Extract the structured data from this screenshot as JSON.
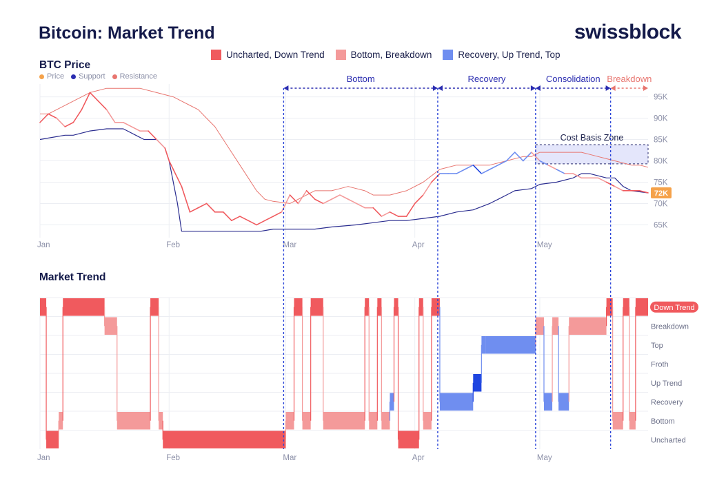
{
  "header": {
    "title": "Bitcoin: Market Trend",
    "brand": "swissblock"
  },
  "legend": [
    {
      "label": "Uncharted, Down Trend",
      "color": "#f05a5e"
    },
    {
      "label": "Bottom, Breakdown",
      "color": "#f49a9a"
    },
    {
      "label": "Recovery, Up Trend, Top",
      "color": "#6f8ef0"
    }
  ],
  "colors": {
    "support": "#2a2c8f",
    "resistance": "#e8756f",
    "down": "#f05a5e",
    "breakdown": "#f49a9a",
    "up": "#6f8ef0",
    "up_strong": "#1f45e0",
    "price_label": "#f5a24a"
  },
  "chart_data": [
    {
      "type": "line",
      "title": "BTC Price",
      "series_legend": [
        {
          "label": "Price",
          "color": "#f5a24a"
        },
        {
          "label": "Support",
          "color": "#2a2cb0"
        },
        {
          "label": "Resistance",
          "color": "#e8756f"
        }
      ],
      "x_axis": {
        "ticks": [
          "Jan",
          "Feb",
          "Mar",
          "Apr",
          "May"
        ],
        "tick_days": [
          0,
          31,
          59,
          90,
          120
        ]
      },
      "y_axis": {
        "ticks": [
          "95K",
          "90K",
          "85K",
          "80K",
          "75K",
          "70K",
          "65K"
        ],
        "tick_values": [
          95,
          90,
          85,
          80,
          75,
          70,
          65
        ],
        "range": [
          62,
          98
        ],
        "unit": "K"
      },
      "current_price_label": "72K",
      "series": [
        {
          "name": "Price",
          "x": [
            0,
            2,
            4,
            6,
            8,
            10,
            12,
            13,
            14,
            16,
            18,
            20,
            22,
            24,
            26,
            28,
            30,
            31,
            32,
            34,
            36,
            38,
            40,
            42,
            44,
            46,
            48,
            50,
            52,
            54,
            56,
            58,
            60,
            62,
            64,
            66,
            68,
            70,
            72,
            74,
            76,
            78,
            80,
            82,
            84,
            86,
            88,
            90,
            92,
            94,
            96,
            98,
            100,
            102,
            104,
            106,
            108,
            110,
            112,
            114,
            116,
            118,
            120,
            122,
            124,
            126,
            128,
            130,
            132,
            134,
            136,
            138,
            140,
            142,
            144,
            146
          ],
          "y": [
            89,
            91,
            90,
            88,
            89,
            92,
            96,
            95,
            94,
            92,
            89,
            89,
            88,
            87,
            87,
            85,
            83,
            80,
            78,
            74,
            68,
            69,
            70,
            68,
            68,
            66,
            67,
            66,
            65,
            66,
            67,
            68,
            72,
            70,
            73,
            71,
            70,
            71,
            72,
            71,
            70,
            69,
            69,
            67,
            68,
            67,
            67,
            70,
            72,
            75,
            77,
            77,
            77,
            78,
            79,
            77,
            78,
            79,
            80,
            82,
            80,
            82,
            80,
            79,
            78,
            77,
            77,
            76,
            76,
            76,
            75,
            74,
            73,
            73,
            73,
            72.5
          ]
        },
        {
          "name": "Support",
          "x": [
            0,
            3,
            6,
            8,
            10,
            12,
            16,
            20,
            23,
            25,
            28,
            30,
            31,
            33,
            34,
            36,
            53,
            56,
            60,
            66,
            70,
            76,
            80,
            84,
            88,
            92,
            96,
            100,
            104,
            108,
            110,
            112,
            114,
            118,
            120,
            124,
            128,
            130,
            132,
            134,
            136,
            138,
            140,
            142,
            146
          ],
          "y": [
            85,
            85.5,
            86,
            86,
            86.5,
            87,
            87.5,
            87.5,
            86,
            85,
            85,
            83,
            80,
            70,
            63.5,
            63.5,
            63.5,
            64,
            64,
            64,
            64.5,
            65,
            65.5,
            66,
            66,
            66.5,
            67,
            68,
            68.5,
            70,
            71,
            72,
            73,
            73.5,
            74.5,
            75,
            76,
            77,
            77,
            76.5,
            76,
            76,
            74,
            73,
            72.5
          ]
        },
        {
          "name": "Resistance",
          "x": [
            0,
            2,
            4,
            8,
            12,
            16,
            20,
            24,
            28,
            30,
            32,
            34,
            36,
            38,
            40,
            42,
            44,
            46,
            48,
            50,
            52,
            54,
            56,
            60,
            62,
            64,
            66,
            68,
            70,
            72,
            74,
            76,
            78,
            80,
            84,
            88,
            92,
            96,
            100,
            104,
            108,
            112,
            116,
            118,
            120,
            124,
            126,
            128,
            130,
            132,
            134,
            136,
            138,
            140,
            142,
            144,
            146
          ],
          "y": [
            91,
            91,
            92,
            94,
            96,
            97,
            97,
            97,
            96,
            95.5,
            95,
            94,
            93,
            92,
            90,
            88,
            85,
            82,
            79,
            76,
            73,
            71,
            70.5,
            70,
            71,
            72,
            73,
            73,
            73,
            73.5,
            74,
            73.5,
            73,
            72,
            72,
            73,
            75,
            78,
            79,
            79,
            79,
            80,
            81,
            81,
            82,
            82,
            82,
            82,
            82,
            81.5,
            81,
            80.5,
            80,
            79.5,
            79,
            79,
            78.5
          ]
        }
      ]
    },
    {
      "type": "heatmap",
      "title": "Market Trend",
      "y_axis": {
        "levels": [
          "Down Trend",
          "Breakdown",
          "Top",
          "Froth",
          "Up Trend",
          "Recovery",
          "Bottom",
          "Uncharted"
        ]
      },
      "x_axis": {
        "ticks": [
          "Jan",
          "Feb",
          "Mar",
          "Apr",
          "May"
        ],
        "tick_days": [
          0,
          31,
          59,
          90,
          120
        ]
      },
      "highlighted_level": "Down Trend",
      "segments": [
        {
          "start": 0,
          "end": 1.5,
          "level": "Down Trend",
          "color": "down"
        },
        {
          "start": 1.5,
          "end": 4.5,
          "level": "Uncharted",
          "color": "down"
        },
        {
          "start": 4.5,
          "end": 5.5,
          "level": "Bottom",
          "color": "breakdown"
        },
        {
          "start": 5.5,
          "end": 15.5,
          "level": "Down Trend",
          "color": "down"
        },
        {
          "start": 15.5,
          "end": 18.5,
          "level": "Breakdown",
          "color": "breakdown"
        },
        {
          "start": 18.5,
          "end": 26.5,
          "level": "Bottom",
          "color": "breakdown"
        },
        {
          "start": 26.5,
          "end": 28.5,
          "level": "Down Trend",
          "color": "down"
        },
        {
          "start": 28.5,
          "end": 29.5,
          "level": "Bottom",
          "color": "breakdown"
        },
        {
          "start": 29.5,
          "end": 59.0,
          "level": "Uncharted",
          "color": "down"
        },
        {
          "start": 59.0,
          "end": 61.0,
          "level": "Bottom",
          "color": "breakdown"
        },
        {
          "start": 61.0,
          "end": 63.0,
          "level": "Down Trend",
          "color": "down"
        },
        {
          "start": 63.0,
          "end": 65.0,
          "level": "Bottom",
          "color": "breakdown"
        },
        {
          "start": 65.0,
          "end": 68.0,
          "level": "Down Trend",
          "color": "down"
        },
        {
          "start": 68.0,
          "end": 78.0,
          "level": "Bottom",
          "color": "breakdown"
        },
        {
          "start": 78.0,
          "end": 79.0,
          "level": "Down Trend",
          "color": "down"
        },
        {
          "start": 79.0,
          "end": 81.0,
          "level": "Bottom",
          "color": "breakdown"
        },
        {
          "start": 81.0,
          "end": 82.0,
          "level": "Down Trend",
          "color": "down"
        },
        {
          "start": 82.0,
          "end": 84.0,
          "level": "Bottom",
          "color": "breakdown"
        },
        {
          "start": 84.0,
          "end": 85.0,
          "level": "Recovery",
          "color": "up"
        },
        {
          "start": 85.0,
          "end": 86.0,
          "level": "Down Trend",
          "color": "down"
        },
        {
          "start": 86.0,
          "end": 91.0,
          "level": "Uncharted",
          "color": "down"
        },
        {
          "start": 91.0,
          "end": 92.0,
          "level": "Down Trend",
          "color": "down"
        },
        {
          "start": 92.0,
          "end": 94.0,
          "level": "Bottom",
          "color": "breakdown"
        },
        {
          "start": 94.0,
          "end": 96.0,
          "level": "Down Trend",
          "color": "down"
        },
        {
          "start": 96.0,
          "end": 104.0,
          "level": "Recovery",
          "color": "up"
        },
        {
          "start": 104.0,
          "end": 106.0,
          "level": "Up Trend",
          "color": "up_strong"
        },
        {
          "start": 106.0,
          "end": 107.0,
          "level": "Top",
          "color": "up"
        },
        {
          "start": 107.0,
          "end": 119.0,
          "level": "Top",
          "color": "up"
        },
        {
          "start": 119.0,
          "end": 121.0,
          "level": "Breakdown",
          "color": "breakdown"
        },
        {
          "start": 121.0,
          "end": 123.0,
          "level": "Recovery",
          "color": "up"
        },
        {
          "start": 123.0,
          "end": 124.5,
          "level": "Breakdown",
          "color": "breakdown"
        },
        {
          "start": 124.5,
          "end": 127.0,
          "level": "Recovery",
          "color": "up"
        },
        {
          "start": 127.0,
          "end": 136.0,
          "level": "Breakdown",
          "color": "breakdown"
        },
        {
          "start": 136.0,
          "end": 137.5,
          "level": "Down Trend",
          "color": "down"
        },
        {
          "start": 137.5,
          "end": 140.0,
          "level": "Bottom",
          "color": "breakdown"
        },
        {
          "start": 140.0,
          "end": 141.5,
          "level": "Down Trend",
          "color": "down"
        },
        {
          "start": 141.5,
          "end": 143.0,
          "level": "Bottom",
          "color": "breakdown"
        },
        {
          "start": 143.0,
          "end": 146.0,
          "level": "Down Trend",
          "color": "down"
        }
      ]
    }
  ],
  "phases": [
    {
      "label": "Bottom",
      "start": 58.5,
      "end": 95.5,
      "color": "#2a2cb0"
    },
    {
      "label": "Recovery",
      "start": 95.5,
      "end": 119.0,
      "color": "#2a2cb0"
    },
    {
      "label": "Consolidation",
      "start": 119.0,
      "end": 137.0,
      "color": "#2a2cb0"
    },
    {
      "label": "Breakdown",
      "start": 137.0,
      "end": 146.0,
      "color": "#e8756f"
    }
  ],
  "zone": {
    "label": "Cost Basis Zone",
    "x_start": 119.0,
    "x_end": 146.0,
    "y_low": 79.3,
    "y_high": 83.8
  }
}
